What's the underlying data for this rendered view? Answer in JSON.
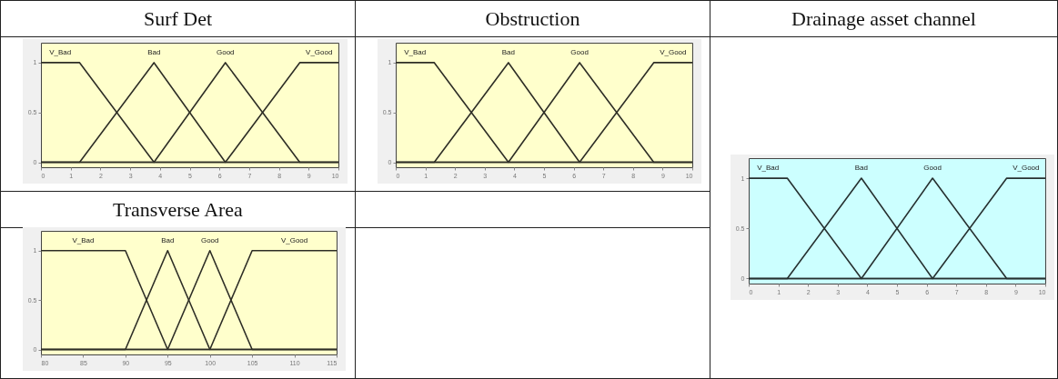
{
  "chart_data": [
    {
      "type": "line",
      "title": "Surf Det",
      "xlim": [
        0,
        10
      ],
      "xticks": [
        0,
        1,
        2,
        3,
        4,
        5,
        6,
        7,
        8,
        9,
        10
      ],
      "ylim": [
        -0.05,
        1.2
      ],
      "yticks": [
        0,
        0.5,
        1
      ],
      "series": [
        {
          "name": "V_Bad",
          "color": "#2e2e26",
          "x": [
            0,
            1.3,
            3.8,
            10
          ],
          "values": [
            1,
            1,
            0,
            0
          ]
        },
        {
          "name": "Bad",
          "color": "#2e2e26",
          "x": [
            0,
            1.3,
            3.8,
            6.2,
            10
          ],
          "values": [
            0,
            0,
            1,
            0,
            0
          ]
        },
        {
          "name": "Good",
          "color": "#2e2e26",
          "x": [
            0,
            3.8,
            6.2,
            8.7,
            10
          ],
          "values": [
            0,
            0,
            1,
            0,
            0
          ]
        },
        {
          "name": "V_Good",
          "color": "#2e2e26",
          "x": [
            0,
            6.2,
            8.7,
            10
          ],
          "values": [
            0,
            0,
            1,
            1
          ]
        }
      ]
    },
    {
      "type": "line",
      "title": "Obstruction",
      "xlim": [
        0,
        10
      ],
      "xticks": [
        0,
        1,
        2,
        3,
        4,
        5,
        6,
        7,
        8,
        9,
        10
      ],
      "ylim": [
        -0.05,
        1.2
      ],
      "yticks": [
        0,
        0.5,
        1
      ],
      "series": [
        {
          "name": "V_Bad",
          "color": "#2e2e26",
          "x": [
            0,
            1.3,
            3.8,
            10
          ],
          "values": [
            1,
            1,
            0,
            0
          ]
        },
        {
          "name": "Bad",
          "color": "#2e2e26",
          "x": [
            0,
            1.3,
            3.8,
            6.2,
            10
          ],
          "values": [
            0,
            0,
            1,
            0,
            0
          ]
        },
        {
          "name": "Good",
          "color": "#2e2e26",
          "x": [
            0,
            3.8,
            6.2,
            8.7,
            10
          ],
          "values": [
            0,
            0,
            1,
            0,
            0
          ]
        },
        {
          "name": "V_Good",
          "color": "#2e2e26",
          "x": [
            0,
            6.2,
            8.7,
            10
          ],
          "values": [
            0,
            0,
            1,
            1
          ]
        }
      ]
    },
    {
      "type": "line",
      "title": "Drainage asset channel",
      "xlim": [
        0,
        10
      ],
      "xticks": [
        0,
        1,
        2,
        3,
        4,
        5,
        6,
        7,
        8,
        9,
        10
      ],
      "ylim": [
        -0.05,
        1.2
      ],
      "yticks": [
        0,
        0.5,
        1
      ],
      "series": [
        {
          "name": "V_Bad",
          "color": "#263030",
          "x": [
            0,
            1.3,
            3.8,
            10
          ],
          "values": [
            1,
            1,
            0,
            0
          ]
        },
        {
          "name": "Bad",
          "color": "#263030",
          "x": [
            0,
            1.3,
            3.8,
            6.2,
            10
          ],
          "values": [
            0,
            0,
            1,
            0,
            0
          ]
        },
        {
          "name": "Good",
          "color": "#263030",
          "x": [
            0,
            3.8,
            6.2,
            8.7,
            10
          ],
          "values": [
            0,
            0,
            1,
            0,
            0
          ]
        },
        {
          "name": "V_Good",
          "color": "#263030",
          "x": [
            0,
            6.2,
            8.7,
            10
          ],
          "values": [
            0,
            0,
            1,
            1
          ]
        }
      ]
    },
    {
      "type": "line",
      "title": "Transverse Area",
      "xlim": [
        80,
        115
      ],
      "xticks": [
        80,
        85,
        90,
        95,
        100,
        105,
        110,
        115
      ],
      "ylim": [
        -0.05,
        1.2
      ],
      "yticks": [
        0,
        0.5,
        1
      ],
      "series": [
        {
          "name": "V_Bad",
          "color": "#2e2e26",
          "x": [
            80,
            90,
            95,
            115
          ],
          "values": [
            1,
            1,
            0,
            0
          ]
        },
        {
          "name": "Bad",
          "color": "#2e2e26",
          "x": [
            80,
            90,
            95,
            100,
            115
          ],
          "values": [
            0,
            0,
            1,
            0,
            0
          ]
        },
        {
          "name": "Good",
          "color": "#2e2e26",
          "x": [
            80,
            95,
            100,
            105,
            115
          ],
          "values": [
            0,
            0,
            1,
            0,
            0
          ]
        },
        {
          "name": "V_Good",
          "color": "#2e2e26",
          "x": [
            80,
            100,
            105,
            115
          ],
          "values": [
            0,
            0,
            1,
            1
          ]
        }
      ]
    }
  ]
}
